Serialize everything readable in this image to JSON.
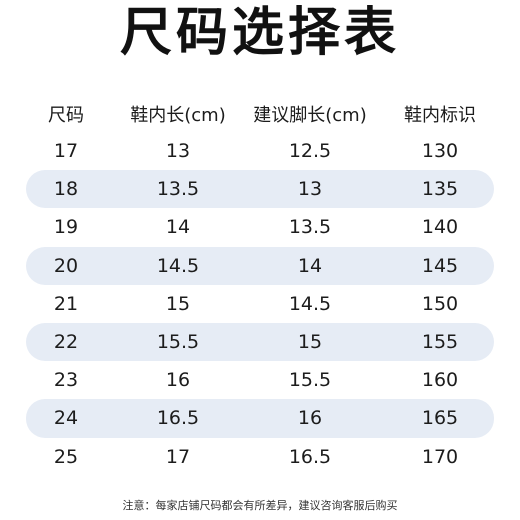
{
  "title": "尺码选择表",
  "table": {
    "headers": [
      "尺码",
      "鞋内长(cm)",
      "建议脚长(cm)",
      "鞋内标识"
    ],
    "rows": [
      [
        "17",
        "13",
        "12.5",
        "130"
      ],
      [
        "18",
        "13.5",
        "13",
        "135"
      ],
      [
        "19",
        "14",
        "13.5",
        "140"
      ],
      [
        "20",
        "14.5",
        "14",
        "145"
      ],
      [
        "21",
        "15",
        "14.5",
        "150"
      ],
      [
        "22",
        "15.5",
        "15",
        "155"
      ],
      [
        "23",
        "16",
        "15.5",
        "160"
      ],
      [
        "24",
        "16.5",
        "16",
        "165"
      ],
      [
        "25",
        "17",
        "16.5",
        "170"
      ]
    ],
    "shaded_row_color": "#e6ecf5"
  },
  "note": "注意：每家店铺尺码都会有所差异，建议咨询客服后购买"
}
